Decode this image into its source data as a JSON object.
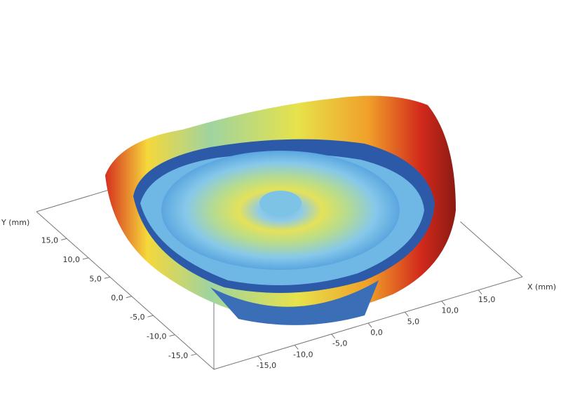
{
  "chart_data": {
    "type": "surface3d",
    "x_label": "X (mm)",
    "y_label": "Y (mm)",
    "xlim": [
      -21,
      21
    ],
    "ylim": [
      -19,
      22
    ],
    "xticks": [
      {
        "value": -15,
        "label": "-15,0"
      },
      {
        "value": -10,
        "label": "-10,0"
      },
      {
        "value": -5,
        "label": "-5,0"
      },
      {
        "value": 0,
        "label": "0,0"
      },
      {
        "value": 5,
        "label": "5,0"
      },
      {
        "value": 10,
        "label": "10,0"
      },
      {
        "value": 15,
        "label": "15,0"
      }
    ],
    "yticks": [
      {
        "value": -15,
        "label": "-15,0"
      },
      {
        "value": -10,
        "label": "-10,0"
      },
      {
        "value": -5,
        "label": "-5,0"
      },
      {
        "value": 0,
        "label": "0,0"
      },
      {
        "value": 5,
        "label": "5,0"
      },
      {
        "value": 10,
        "label": "10,0"
      },
      {
        "value": 15,
        "label": "15,0"
      }
    ]
  }
}
